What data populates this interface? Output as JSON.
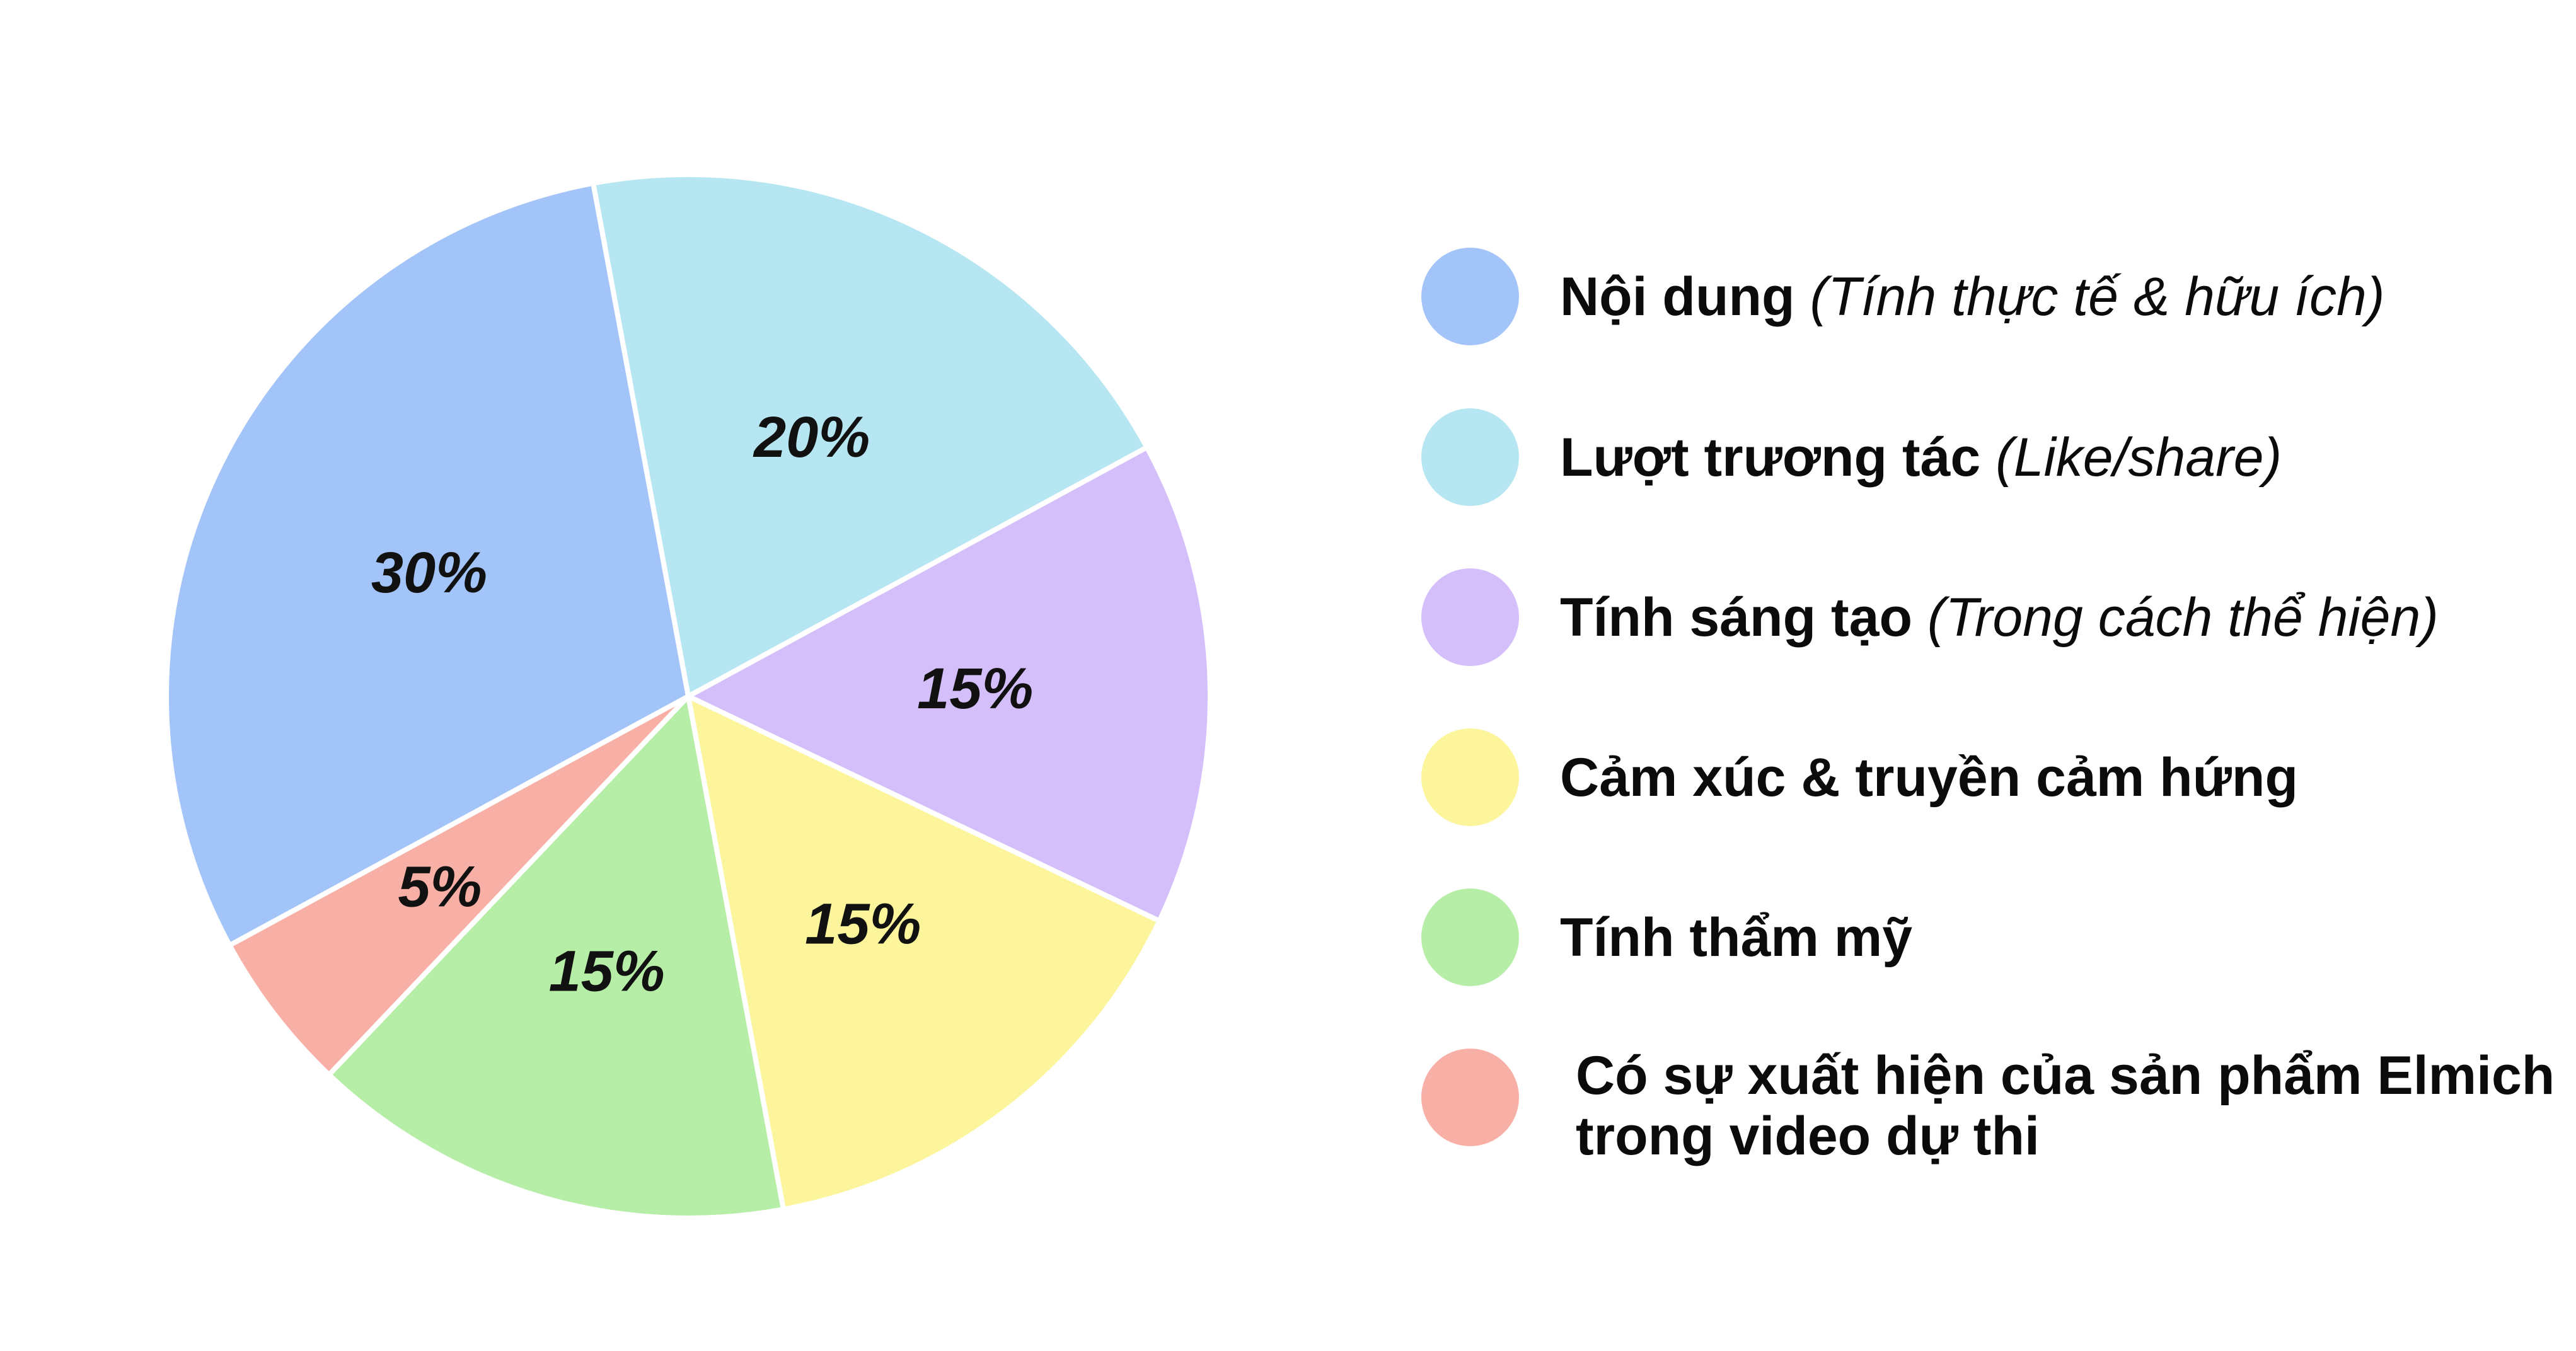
{
  "chart_data": {
    "type": "pie",
    "slices": [
      {
        "label": "Nội dung",
        "note": "(Tính thực tế & hữu ích)",
        "value": 30,
        "value_label": "30%",
        "color": "#a3c4f9"
      },
      {
        "label": "Lượt trương tác",
        "note": "(Like/share)",
        "value": 20,
        "value_label": "20%",
        "color": "#b6e6f2"
      },
      {
        "label": "Tính sáng tạo",
        "note": "(Trong cách thể hiện)",
        "value": 15,
        "value_label": "15%",
        "color": "#d4bffb"
      },
      {
        "label": "Cảm xúc & truyền cảm hứng",
        "note": "",
        "value": 15,
        "value_label": "15%",
        "color": "#fdf59b"
      },
      {
        "label": "Tính thẩm mỹ",
        "note": "",
        "value": 15,
        "value_label": "15%",
        "color": "#b6eea8"
      },
      {
        "label": "Có sự xuất hiện của sản phẩm Elmich trong video dự thi",
        "note": "",
        "value": 5,
        "value_label": "5%",
        "color": "#f8b0a6"
      }
    ],
    "slice_border_color": "#ffffff",
    "legend_position": "right"
  }
}
